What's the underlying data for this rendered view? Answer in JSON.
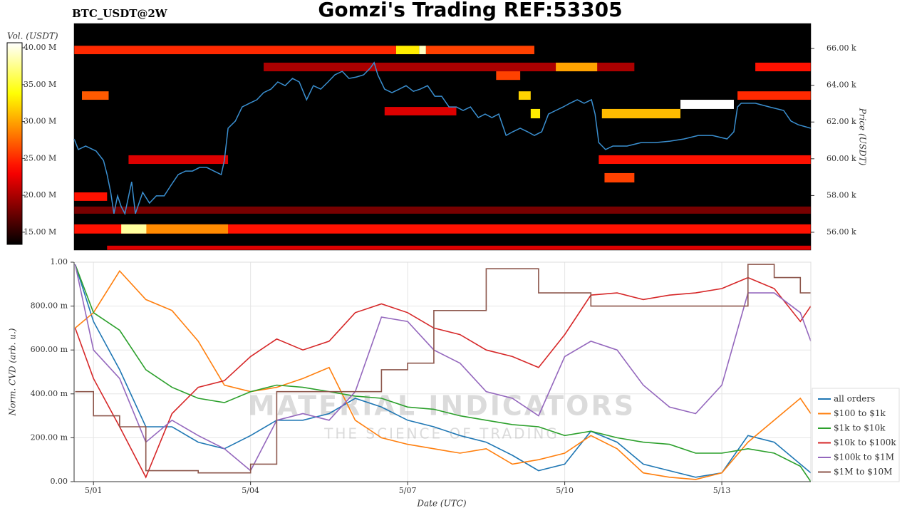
{
  "chart_data": [
    {
      "type": "heatmap",
      "title": "Gomzi's Trading REF:53305",
      "subtitle": "BTC_USDT@2W",
      "xlim": [
        -0.37,
        13.7
      ],
      "ylim": [
        55030,
        67360
      ],
      "yticks": [
        {
          "value": 56000,
          "label": "56.00 k"
        },
        {
          "value": 58000,
          "label": "58.00 k"
        },
        {
          "value": 60000,
          "label": "60.00 k"
        },
        {
          "value": 62000,
          "label": "62.00 k"
        },
        {
          "value": 64000,
          "label": "64.00 k"
        },
        {
          "value": 66000,
          "label": "66.00 k"
        }
      ],
      "ylabel": "Price (USDT)",
      "background": "#000000",
      "colorbar": {
        "label": "Vol. (USDT)",
        "colormap": "hot",
        "lim": [
          13350000,
          40680000
        ],
        "ticks": [
          {
            "value": 15000000,
            "label": "15.00 M"
          },
          {
            "value": 20000000,
            "label": "20.00 M"
          },
          {
            "value": 25000000,
            "label": "25.00 M"
          },
          {
            "value": 30000000,
            "label": "30.00 M"
          },
          {
            "value": 35000000,
            "label": "35.00 M"
          },
          {
            "value": 40000000,
            "label": "40.00 M"
          }
        ]
      },
      "cells": [
        {
          "x": [
            -0.37,
            13.7
          ],
          "y": [
            57010,
            57400
          ],
          "value": 18000000
        },
        {
          "x": [
            0.26,
            13.7
          ],
          "y": [
            55030,
            55270
          ],
          "value": 22000000
        },
        {
          "x": [
            -0.37,
            13.7
          ],
          "y": [
            55930,
            56430
          ],
          "value": 24000000
        },
        {
          "x": [
            1.01,
            2.57
          ],
          "y": [
            55930,
            56430
          ],
          "value": 29000000
        },
        {
          "x": [
            0.53,
            1.01
          ],
          "y": [
            55930,
            56430
          ],
          "value": 38000000
        },
        {
          "x": [
            -0.37,
            0.26
          ],
          "y": [
            57710,
            58170
          ],
          "value": 24000000
        },
        {
          "x": [
            0.67,
            2.57
          ],
          "y": [
            59720,
            60190
          ],
          "value": 22000000
        },
        {
          "x": [
            9.65,
            13.7
          ],
          "y": [
            59720,
            60190
          ],
          "value": 24000000
        },
        {
          "x": [
            9.76,
            10.33
          ],
          "y": [
            58710,
            59220
          ],
          "value": 26000000
        },
        {
          "x": [
            3.25,
            10.33
          ],
          "y": [
            64760,
            65230
          ],
          "value": 20000000
        },
        {
          "x": [
            8.83,
            9.62
          ],
          "y": [
            64760,
            65230
          ],
          "value": 30000000
        },
        {
          "x": [
            12.64,
            13.7
          ],
          "y": [
            64760,
            65230
          ],
          "value": 24000000
        },
        {
          "x": [
            7.69,
            8.15
          ],
          "y": [
            64290,
            64760
          ],
          "value": 26000000
        },
        {
          "x": [
            -0.37,
            5.78
          ],
          "y": [
            65690,
            66150
          ],
          "value": 25000000
        },
        {
          "x": [
            5.78,
            6.22
          ],
          "y": [
            65690,
            66150
          ],
          "value": 33000000
        },
        {
          "x": [
            6.22,
            6.35
          ],
          "y": [
            65690,
            66150
          ],
          "value": 39000000
        },
        {
          "x": [
            6.35,
            8.42
          ],
          "y": [
            65690,
            66150
          ],
          "value": 26000000
        },
        {
          "x": [
            -0.22,
            0.29
          ],
          "y": [
            63210,
            63670
          ],
          "value": 27000000
        },
        {
          "x": [
            12.3,
            13.7
          ],
          "y": [
            63210,
            63670
          ],
          "value": 25000000
        },
        {
          "x": [
            5.56,
            6.93
          ],
          "y": [
            62360,
            62820
          ],
          "value": 22000000
        },
        {
          "x": [
            8.12,
            8.35
          ],
          "y": [
            63210,
            63670
          ],
          "value": 32000000
        },
        {
          "x": [
            8.35,
            8.53
          ],
          "y": [
            62200,
            62710
          ],
          "value": 33000000
        },
        {
          "x": [
            9.71,
            11.21
          ],
          "y": [
            62200,
            62710
          ],
          "value": 31000000
        },
        {
          "x": [
            11.21,
            12.23
          ],
          "y": [
            62710,
            63210
          ],
          "value": 44000000
        }
      ],
      "series": [
        {
          "color": "#3a8fd0",
          "x": [
            -0.37,
            -0.29,
            -0.15,
            0.05,
            0.19,
            0.26,
            0.33,
            0.39,
            0.46,
            0.53,
            0.6,
            0.73,
            0.8,
            0.94,
            1.07,
            1.2,
            1.35,
            1.48,
            1.62,
            1.76,
            1.89,
            2.03,
            2.16,
            2.3,
            2.44,
            2.5,
            2.57,
            2.71,
            2.84,
            2.98,
            3.12,
            3.25,
            3.39,
            3.52,
            3.66,
            3.8,
            3.93,
            4.07,
            4.2,
            4.34,
            4.48,
            4.61,
            4.75,
            4.88,
            5.02,
            5.16,
            5.29,
            5.36,
            5.43,
            5.56,
            5.7,
            5.84,
            5.97,
            6.11,
            6.24,
            6.38,
            6.52,
            6.65,
            6.79,
            6.93,
            7.06,
            7.2,
            7.35,
            7.48,
            7.61,
            7.74,
            7.88,
            8.01,
            8.15,
            8.29,
            8.42,
            8.56,
            8.69,
            8.83,
            8.97,
            9.1,
            9.24,
            9.37,
            9.51,
            9.58,
            9.65,
            9.78,
            9.92,
            10.19,
            10.46,
            10.73,
            11.01,
            11.28,
            11.55,
            11.82,
            12.1,
            12.23,
            12.3,
            12.37,
            12.64,
            12.91,
            13.18,
            13.32,
            13.46,
            13.7
          ],
          "values": [
            61080,
            60500,
            60690,
            60420,
            59910,
            59140,
            58170,
            57010,
            57980,
            57400,
            57010,
            58750,
            57010,
            58170,
            57590,
            57980,
            57980,
            58560,
            59140,
            59330,
            59330,
            59530,
            59530,
            59330,
            59140,
            59910,
            61660,
            62050,
            62820,
            63020,
            63210,
            63600,
            63790,
            64180,
            63980,
            64370,
            64180,
            63210,
            63980,
            63790,
            64180,
            64570,
            64760,
            64370,
            64450,
            64570,
            64950,
            65230,
            64570,
            63790,
            63600,
            63790,
            63980,
            63670,
            63790,
            63980,
            63400,
            63400,
            62820,
            62820,
            62630,
            62820,
            62240,
            62430,
            62240,
            62430,
            61270,
            61470,
            61660,
            61470,
            61270,
            61470,
            62430,
            62630,
            62820,
            63020,
            63210,
            63020,
            63210,
            62430,
            60880,
            60500,
            60690,
            60690,
            60880,
            60880,
            60960,
            61080,
            61270,
            61270,
            61080,
            61470,
            62820,
            63020,
            63020,
            62820,
            62630,
            62050,
            61850,
            61660
          ]
        }
      ]
    },
    {
      "type": "line",
      "xlabel": "Date (UTC)",
      "ylabel": "Norm. CVD (arb. u.)",
      "xlim": [
        -0.37,
        13.7
      ],
      "ylim": [
        0,
        1
      ],
      "xticks": [
        {
          "value": 0,
          "label": "5/01"
        },
        {
          "value": 3,
          "label": "5/04"
        },
        {
          "value": 6,
          "label": "5/07"
        },
        {
          "value": 9,
          "label": "5/10"
        },
        {
          "value": 12,
          "label": "5/13"
        }
      ],
      "yticks": [
        {
          "value": 0,
          "label": "0.00"
        },
        {
          "value": 0.2,
          "label": "200.00 m"
        },
        {
          "value": 0.4,
          "label": "400.00 m"
        },
        {
          "value": 0.6,
          "label": "600.00 m"
        },
        {
          "value": 0.8,
          "label": "800.00 m"
        },
        {
          "value": 1,
          "label": "1.00"
        }
      ],
      "grid": true,
      "legend": "lower right",
      "watermark": [
        "MATERIAL INDICATORS",
        "THE SCIENCE OF TRADING"
      ],
      "x": [
        -0.35,
        0,
        0.5,
        1,
        1.5,
        2,
        2.5,
        3,
        3.5,
        4,
        4.5,
        5,
        5.5,
        6,
        6.5,
        7,
        7.5,
        8,
        8.5,
        9,
        9.5,
        10,
        10.5,
        11,
        11.5,
        12,
        12.5,
        13,
        13.5,
        13.7
      ],
      "series": [
        {
          "name": "all orders",
          "color": "#1f77b4",
          "values": [
            0.99,
            0.73,
            0.51,
            0.25,
            0.25,
            0.18,
            0.15,
            0.21,
            0.28,
            0.28,
            0.31,
            0.38,
            0.34,
            0.28,
            0.25,
            0.21,
            0.18,
            0.12,
            0.05,
            0.08,
            0.23,
            0.18,
            0.08,
            0.05,
            0.02,
            0.04,
            0.21,
            0.18,
            0.08,
            0.04
          ]
        },
        {
          "name": "$100 to $1k",
          "color": "#ff7f0e",
          "values": [
            0.7,
            0.77,
            0.96,
            0.83,
            0.78,
            0.64,
            0.44,
            0.41,
            0.43,
            0.47,
            0.52,
            0.28,
            0.2,
            0.17,
            0.15,
            0.13,
            0.15,
            0.08,
            0.1,
            0.13,
            0.21,
            0.15,
            0.04,
            0.02,
            0.01,
            0.04,
            0.18,
            0.28,
            0.38,
            0.31
          ]
        },
        {
          "name": "$1k to $10k",
          "color": "#2ca02c",
          "values": [
            0.99,
            0.77,
            0.69,
            0.51,
            0.43,
            0.38,
            0.36,
            0.41,
            0.44,
            0.43,
            0.41,
            0.39,
            0.38,
            0.34,
            0.33,
            0.3,
            0.28,
            0.26,
            0.25,
            0.21,
            0.23,
            0.2,
            0.18,
            0.17,
            0.13,
            0.13,
            0.15,
            0.13,
            0.07,
            0
          ]
        },
        {
          "name": "$10k to $100k",
          "color": "#d62728",
          "values": [
            0.7,
            0.47,
            0.25,
            0.02,
            0.31,
            0.43,
            0.46,
            0.57,
            0.65,
            0.6,
            0.64,
            0.77,
            0.81,
            0.77,
            0.7,
            0.67,
            0.6,
            0.57,
            0.52,
            0.67,
            0.85,
            0.86,
            0.83,
            0.85,
            0.86,
            0.88,
            0.93,
            0.88,
            0.73,
            0.8
          ]
        },
        {
          "name": "$100k to $1M",
          "color": "#9467bd",
          "values": [
            0.99,
            0.6,
            0.47,
            0.18,
            0.28,
            0.21,
            0.15,
            0.05,
            0.28,
            0.31,
            0.28,
            0.41,
            0.75,
            0.73,
            0.6,
            0.54,
            0.41,
            0.38,
            0.3,
            0.57,
            0.64,
            0.6,
            0.44,
            0.34,
            0.31,
            0.44,
            0.86,
            0.86,
            0.77,
            0.64
          ]
        },
        {
          "name": "$1M to $10M",
          "color": "#8c564b",
          "drawstyle": "steps-post",
          "values": [
            0.41,
            0.3,
            0.25,
            0.05,
            0.05,
            0.04,
            0.04,
            0.08,
            0.41,
            0.41,
            0.41,
            0.41,
            0.51,
            0.54,
            0.78,
            0.78,
            0.97,
            0.97,
            0.86,
            0.86,
            0.8,
            0.8,
            0.8,
            0.8,
            0.8,
            0.8,
            0.99,
            0.93,
            0.86,
            0.86
          ]
        }
      ]
    }
  ]
}
